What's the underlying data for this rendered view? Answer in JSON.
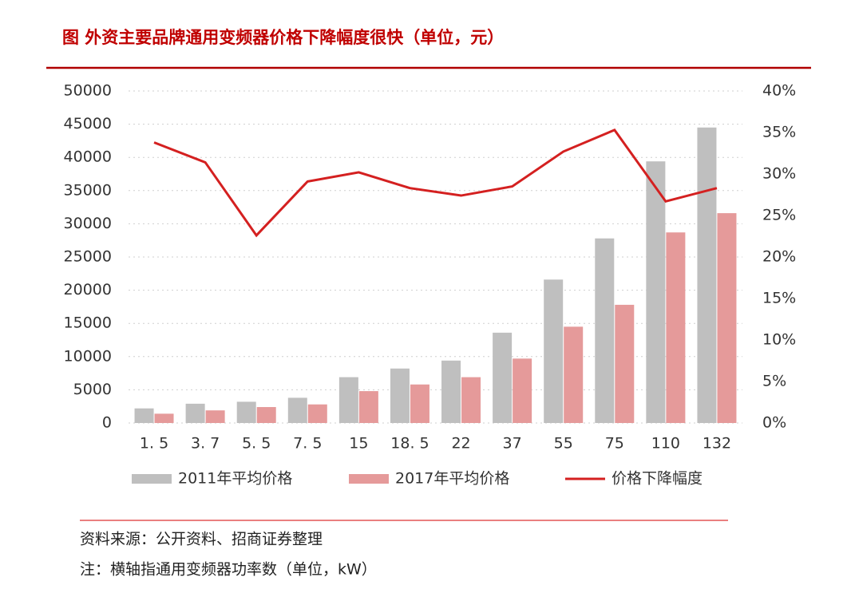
{
  "chart_data": {
    "type": "combo",
    "title": "图 外资主要品牌通用变频器价格下降幅度很快（单位，元）",
    "categories": [
      "1. 5",
      "3. 7",
      "5. 5",
      "7. 5",
      "15",
      "18. 5",
      "22",
      "37",
      "55",
      "75",
      "110",
      "132"
    ],
    "series": [
      {
        "name": "2011年平均价格",
        "type": "bar",
        "color": "#bfbfbf",
        "values": [
          2200,
          2900,
          3200,
          3800,
          6900,
          8200,
          9400,
          13600,
          21600,
          27800,
          39400,
          44500
        ]
      },
      {
        "name": "2017年平均价格",
        "type": "bar",
        "color": "#e59a9a",
        "values": [
          1400,
          1900,
          2400,
          2800,
          4800,
          5800,
          6900,
          9700,
          14500,
          17800,
          28700,
          31600
        ]
      },
      {
        "name": "价格下降幅度",
        "type": "line",
        "axis": "y2",
        "color": "#d42020",
        "values": [
          33.8,
          31.4,
          22.6,
          29.1,
          30.2,
          28.3,
          27.4,
          28.5,
          32.7,
          35.3,
          26.7,
          28.3
        ]
      }
    ],
    "ylim": [
      0,
      50000
    ],
    "yticks": [
      0,
      5000,
      10000,
      15000,
      20000,
      25000,
      30000,
      35000,
      40000,
      45000,
      50000
    ],
    "y2lim": [
      0,
      40
    ],
    "y2ticks": [
      {
        "value": 0,
        "label": "0%"
      },
      {
        "value": 5,
        "label": "5%"
      },
      {
        "value": 10,
        "label": "10%"
      },
      {
        "value": 15,
        "label": "15%"
      },
      {
        "value": 20,
        "label": "20%"
      },
      {
        "value": 25,
        "label": "25%"
      },
      {
        "value": 30,
        "label": "30%"
      },
      {
        "value": 35,
        "label": "35%"
      },
      {
        "value": 40,
        "label": "40%"
      }
    ],
    "grid": true,
    "legend": "bottom",
    "notes": [
      "资料来源：公开资料、招商证券整理",
      "注：横轴指通用变频器功率数（单位，kW）"
    ]
  }
}
